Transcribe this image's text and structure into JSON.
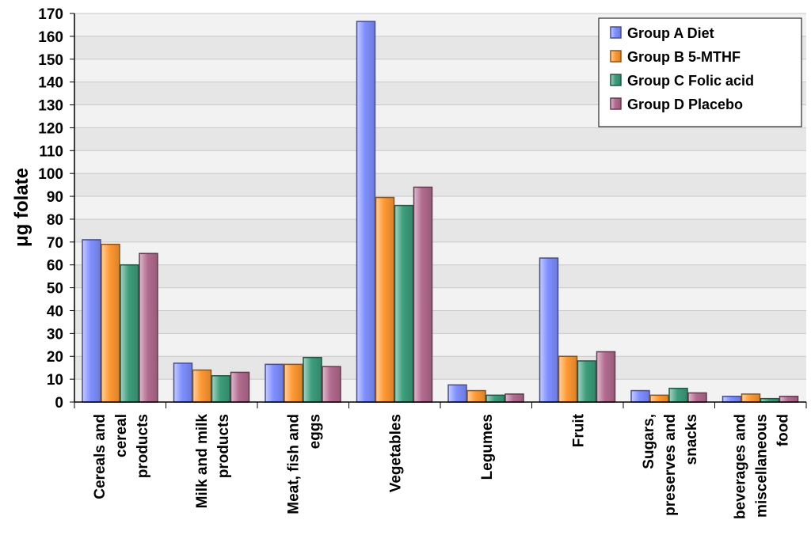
{
  "chart_data": {
    "type": "bar",
    "title": "",
    "xlabel": "",
    "ylabel": "μg folate",
    "ylim": [
      0,
      170
    ],
    "ytick_step": 10,
    "grid": true,
    "legend_position": "top-right",
    "categories": [
      [
        "Cereals and",
        "cereal",
        "products"
      ],
      [
        "Milk and milk",
        "products"
      ],
      [
        "Meat, fish and",
        "eggs"
      ],
      [
        "Vegetables"
      ],
      [
        "Legumes"
      ],
      [
        "Fruit"
      ],
      [
        "Sugars,",
        "preserves and",
        "snacks"
      ],
      [
        "beverages and",
        "miscellaneous",
        "food"
      ]
    ],
    "series": [
      {
        "name": "Group A Diet",
        "color": "#7f8fff",
        "values": [
          71,
          17,
          16.5,
          166.5,
          7.5,
          63,
          5,
          2.5
        ]
      },
      {
        "name": "Group B 5-MTHF",
        "color": "#ff9933",
        "values": [
          69,
          14,
          16.5,
          89.5,
          5,
          20,
          3,
          3.5
        ]
      },
      {
        "name": "Group C Folic acid",
        "color": "#3d9e7c",
        "values": [
          60,
          11.5,
          19.5,
          86,
          3,
          18,
          6,
          1.5
        ]
      },
      {
        "name": "Group D Placebo",
        "color": "#b36b8f",
        "values": [
          65,
          13,
          15.5,
          94,
          3.5,
          22,
          4,
          2.5
        ]
      }
    ]
  }
}
